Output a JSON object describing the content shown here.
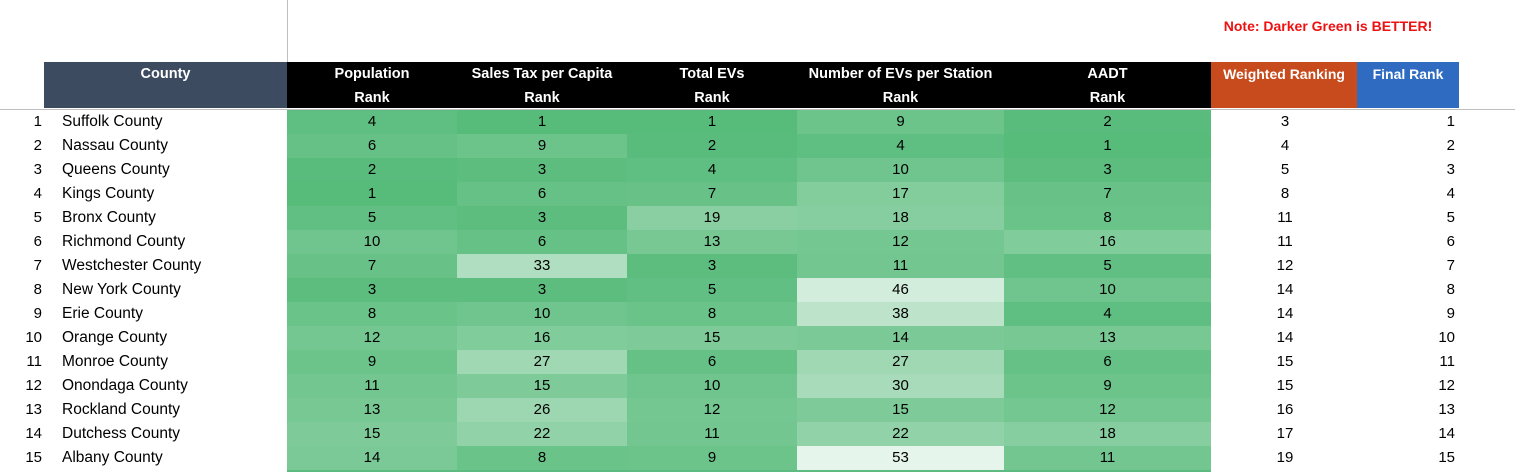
{
  "note": "Note: Darker Green is BETTER!",
  "headers": {
    "county": "County",
    "population": [
      "Population",
      "Rank"
    ],
    "sales_tax": [
      "Sales Tax per Capita",
      "Rank"
    ],
    "total_evs": [
      "Total EVs",
      "Rank"
    ],
    "evs_per_station": [
      "Number of EVs per Station",
      "Rank"
    ],
    "aadt": [
      "AADT",
      "Rank"
    ],
    "weighted": "Weighted Ranking",
    "final": "Final Rank"
  },
  "colors": {
    "county_header": "#3c4b60",
    "rank_header": "#000000",
    "weighted_header": "#c84b1e",
    "final_header": "#2e6bc1",
    "note_text": "#ee1111",
    "scale_best": "#57bb7a",
    "scale_worst": "#ffffff"
  },
  "rows": [
    {
      "n": "1",
      "county": "Suffolk County",
      "pop": 4,
      "tax": 1,
      "evs": 1,
      "eps": 9,
      "aadt": 2,
      "weighted": "3",
      "final": "1"
    },
    {
      "n": "2",
      "county": "Nassau County",
      "pop": 6,
      "tax": 9,
      "evs": 2,
      "eps": 4,
      "aadt": 1,
      "weighted": "4",
      "final": "2"
    },
    {
      "n": "3",
      "county": "Queens County",
      "pop": 2,
      "tax": 3,
      "evs": 4,
      "eps": 10,
      "aadt": 3,
      "weighted": "5",
      "final": "3"
    },
    {
      "n": "4",
      "county": "Kings County",
      "pop": 1,
      "tax": 6,
      "evs": 7,
      "eps": 17,
      "aadt": 7,
      "weighted": "8",
      "final": "4"
    },
    {
      "n": "5",
      "county": "Bronx County",
      "pop": 5,
      "tax": 3,
      "evs": 19,
      "eps": 18,
      "aadt": 8,
      "weighted": "11",
      "final": "5"
    },
    {
      "n": "6",
      "county": "Richmond County",
      "pop": 10,
      "tax": 6,
      "evs": 13,
      "eps": 12,
      "aadt": 16,
      "weighted": "11",
      "final": "6"
    },
    {
      "n": "7",
      "county": "Westchester County",
      "pop": 7,
      "tax": 33,
      "evs": 3,
      "eps": 11,
      "aadt": 5,
      "weighted": "12",
      "final": "7"
    },
    {
      "n": "8",
      "county": "New York County",
      "pop": 3,
      "tax": 3,
      "evs": 5,
      "eps": 46,
      "aadt": 10,
      "weighted": "14",
      "final": "8"
    },
    {
      "n": "9",
      "county": "Erie County",
      "pop": 8,
      "tax": 10,
      "evs": 8,
      "eps": 38,
      "aadt": 4,
      "weighted": "14",
      "final": "9"
    },
    {
      "n": "10",
      "county": "Orange County",
      "pop": 12,
      "tax": 16,
      "evs": 15,
      "eps": 14,
      "aadt": 13,
      "weighted": "14",
      "final": "10"
    },
    {
      "n": "11",
      "county": "Monroe County",
      "pop": 9,
      "tax": 27,
      "evs": 6,
      "eps": 27,
      "aadt": 6,
      "weighted": "15",
      "final": "11"
    },
    {
      "n": "12",
      "county": "Onondaga County",
      "pop": 11,
      "tax": 15,
      "evs": 10,
      "eps": 30,
      "aadt": 9,
      "weighted": "15",
      "final": "12"
    },
    {
      "n": "13",
      "county": "Rockland County",
      "pop": 13,
      "tax": 26,
      "evs": 12,
      "eps": 15,
      "aadt": 12,
      "weighted": "16",
      "final": "13"
    },
    {
      "n": "14",
      "county": "Dutchess County",
      "pop": 15,
      "tax": 22,
      "evs": 11,
      "eps": 22,
      "aadt": 18,
      "weighted": "17",
      "final": "14"
    },
    {
      "n": "15",
      "county": "Albany County",
      "pop": 14,
      "tax": 8,
      "evs": 9,
      "eps": 53,
      "aadt": 11,
      "weighted": "19",
      "final": "15"
    }
  ]
}
